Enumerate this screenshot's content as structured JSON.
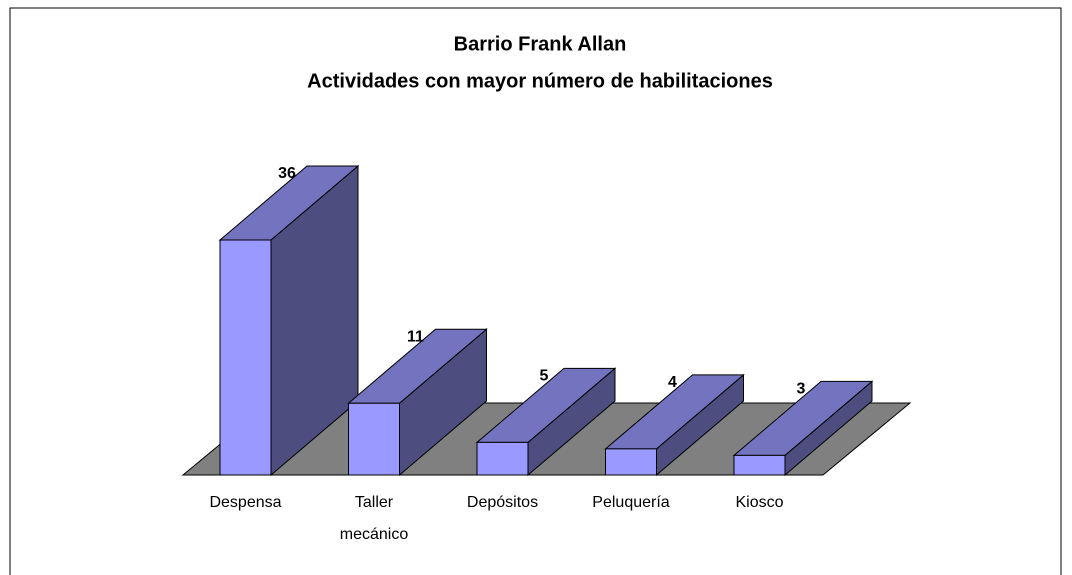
{
  "chart_data": {
    "type": "bar3d",
    "title": "Barrio Frank Allan",
    "subtitle": "Actividades con mayor número de habilitaciones",
    "categories": [
      "Despensa",
      "Taller mecánico",
      "Depósitos",
      "Peluquería",
      "Kiosco"
    ],
    "values": [
      36,
      11,
      5,
      4,
      3
    ],
    "color": "#9999ff",
    "floor_color": "#808080"
  }
}
